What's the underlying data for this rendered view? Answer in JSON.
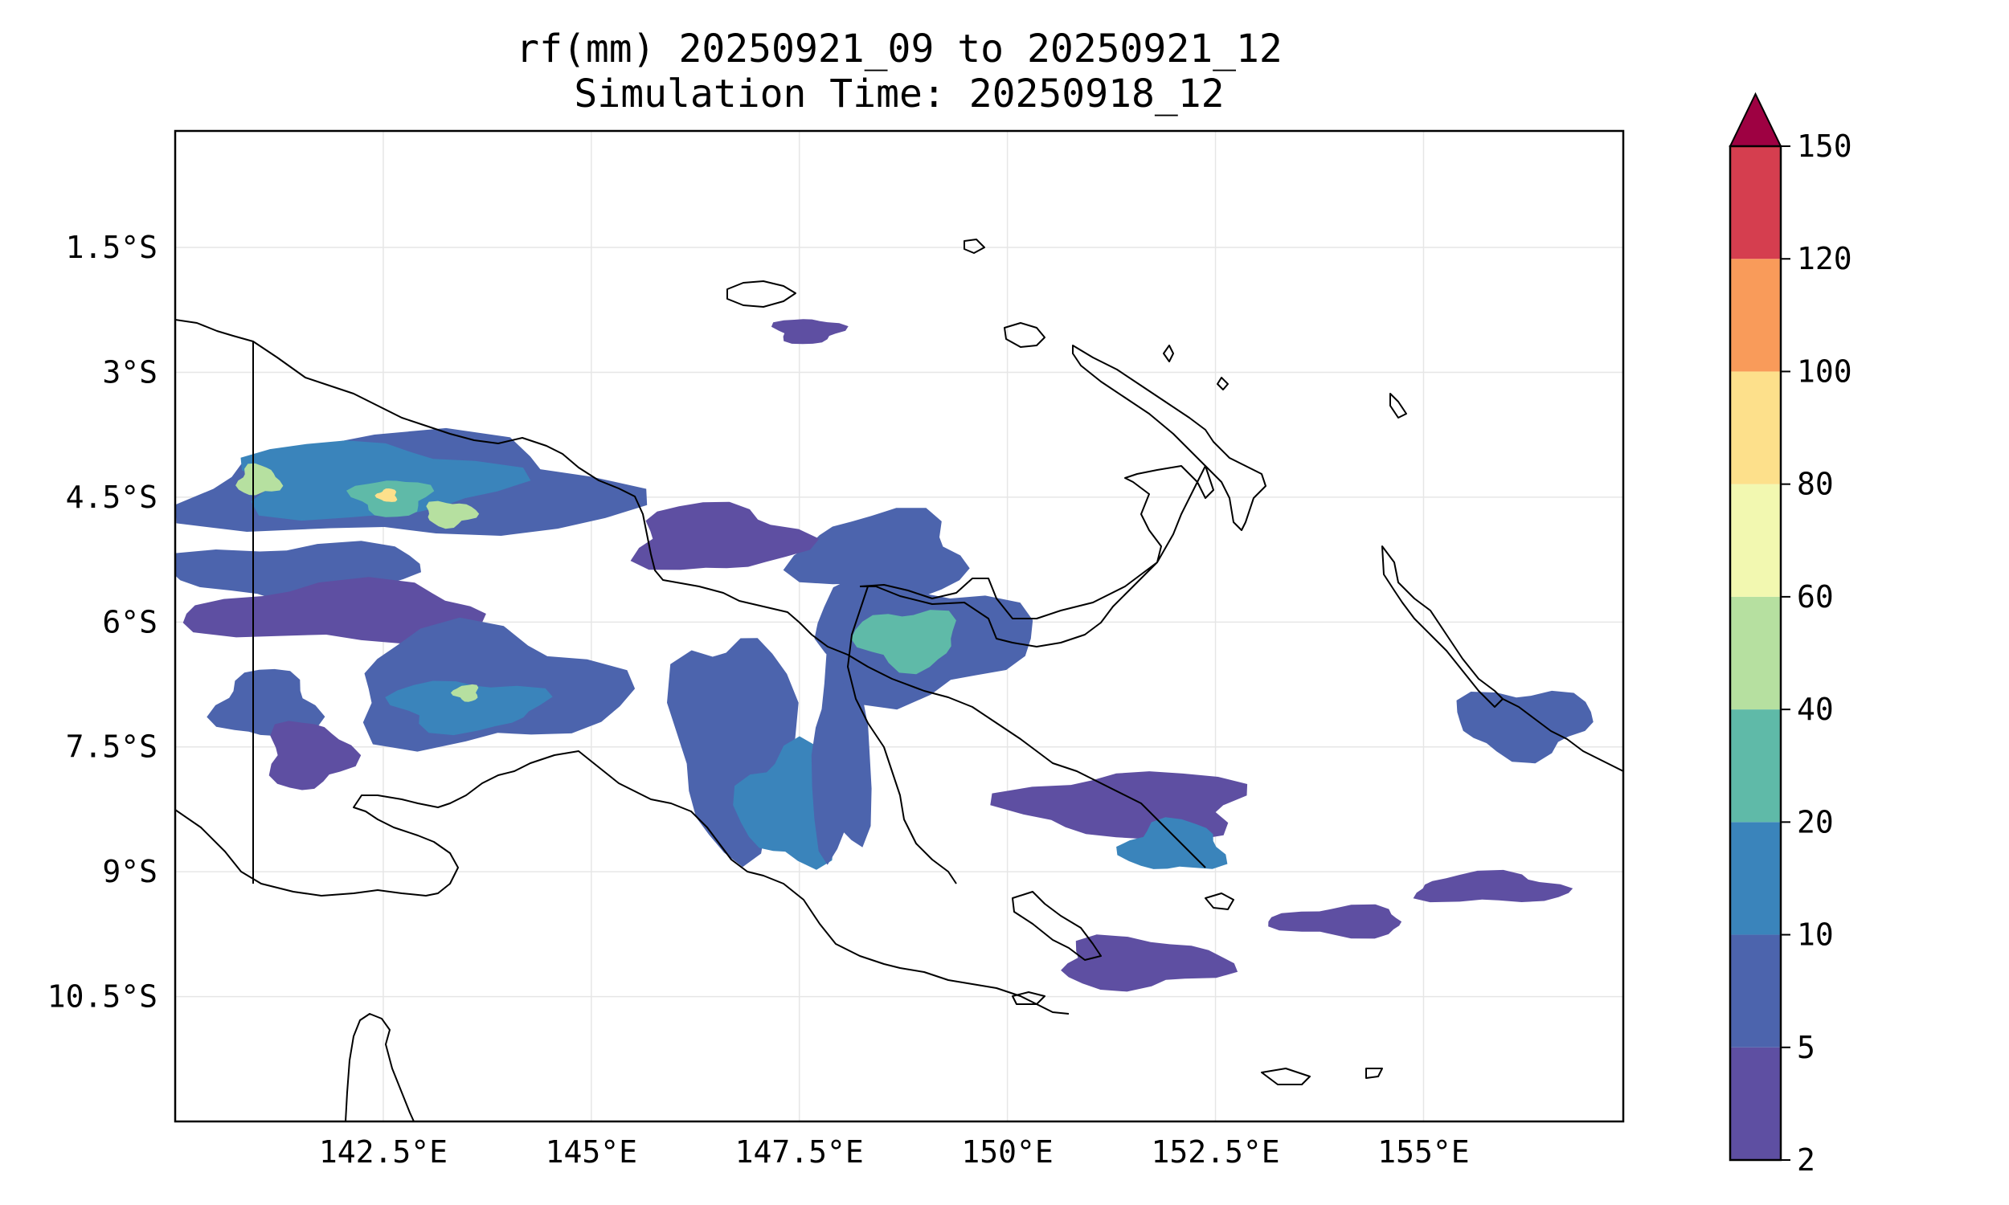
{
  "chart_data": {
    "type": "heatmap",
    "subtype": "filled-contour-map",
    "title": "rf(mm) 20250921_09 to 20250921_12",
    "subtitle": "Simulation Time: 20250918_12",
    "x_ticks": [
      "142.5°E",
      "145°E",
      "147.5°E",
      "150°E",
      "152.5°E",
      "155°E"
    ],
    "x_tick_values": [
      142.5,
      145,
      147.5,
      150,
      152.5,
      155
    ],
    "y_ticks": [
      "1.5°S",
      "3°S",
      "4.5°S",
      "6°S",
      "7.5°S",
      "9°S",
      "10.5°S"
    ],
    "y_tick_values": [
      -1.5,
      -3,
      -4.5,
      -6,
      -7.5,
      -9,
      -10.5
    ],
    "xlim": [
      140.0,
      157.4
    ],
    "ylim": [
      -12.0,
      -0.1
    ],
    "grid": true,
    "colorbar": {
      "location": "right",
      "extend": "max",
      "ticks": [
        "2",
        "5",
        "10",
        "20",
        "40",
        "60",
        "80",
        "100",
        "120",
        "150"
      ],
      "levels": [
        2,
        5,
        10,
        20,
        40,
        60,
        80,
        100,
        120,
        150
      ],
      "colors": [
        "#5e4fa2",
        "#4c64ad",
        "#3a84bb",
        "#5fbaa8",
        "#b6e0a0",
        "#f2f8b0",
        "#fde08b",
        "#f99b5a",
        "#d53e4f"
      ],
      "over_color": "#9e0142"
    },
    "rain_cells": [
      {
        "lon": 142.8,
        "lat": -4.4,
        "rx": 2.6,
        "ry": 0.6,
        "level": 2
      },
      {
        "lon": 142.3,
        "lat": -4.3,
        "rx": 1.6,
        "ry": 0.45,
        "level": 3
      },
      {
        "lon": 142.6,
        "lat": -4.5,
        "rx": 0.45,
        "ry": 0.22,
        "level": 4
      },
      {
        "lon": 142.55,
        "lat": -4.48,
        "rx": 0.12,
        "ry": 0.08,
        "level": 7
      },
      {
        "lon": 141.0,
        "lat": -4.3,
        "rx": 0.25,
        "ry": 0.18,
        "level": 5
      },
      {
        "lon": 143.3,
        "lat": -4.7,
        "rx": 0.3,
        "ry": 0.15,
        "level": 5
      },
      {
        "lon": 141.5,
        "lat": -5.4,
        "rx": 1.5,
        "ry": 0.35,
        "level": 2
      },
      {
        "lon": 142.0,
        "lat": -5.9,
        "rx": 1.8,
        "ry": 0.35,
        "level": 1
      },
      {
        "lon": 143.7,
        "lat": -6.8,
        "rx": 1.6,
        "ry": 0.7,
        "level": 2
      },
      {
        "lon": 143.5,
        "lat": -7.0,
        "rx": 0.9,
        "ry": 0.3,
        "level": 3
      },
      {
        "lon": 143.5,
        "lat": -6.85,
        "rx": 0.15,
        "ry": 0.1,
        "level": 5
      },
      {
        "lon": 141.1,
        "lat": -7.0,
        "rx": 0.6,
        "ry": 0.4,
        "level": 2
      },
      {
        "lon": 141.6,
        "lat": -7.6,
        "rx": 0.5,
        "ry": 0.4,
        "level": 1
      },
      {
        "lon": 146.7,
        "lat": -7.4,
        "rx": 0.7,
        "ry": 1.3,
        "level": 2
      },
      {
        "lon": 147.4,
        "lat": -8.2,
        "rx": 0.6,
        "ry": 0.7,
        "level": 3
      },
      {
        "lon": 148.0,
        "lat": -7.6,
        "rx": 0.35,
        "ry": 1.3,
        "level": 2
      },
      {
        "lon": 148.9,
        "lat": -6.2,
        "rx": 1.3,
        "ry": 0.7,
        "level": 2
      },
      {
        "lon": 148.8,
        "lat": -6.2,
        "rx": 0.6,
        "ry": 0.35,
        "level": 4
      },
      {
        "lon": 148.5,
        "lat": -5.2,
        "rx": 1.0,
        "ry": 0.5,
        "level": 2
      },
      {
        "lon": 146.5,
        "lat": -5.0,
        "rx": 1.0,
        "ry": 0.4,
        "level": 1
      },
      {
        "lon": 147.6,
        "lat": -2.5,
        "rx": 0.4,
        "ry": 0.15,
        "level": 1
      },
      {
        "lon": 151.5,
        "lat": -8.2,
        "rx": 1.4,
        "ry": 0.4,
        "level": 1
      },
      {
        "lon": 152.0,
        "lat": -8.7,
        "rx": 0.6,
        "ry": 0.3,
        "level": 3
      },
      {
        "lon": 151.6,
        "lat": -10.1,
        "rx": 1.0,
        "ry": 0.3,
        "level": 1
      },
      {
        "lon": 156.2,
        "lat": -7.2,
        "rx": 0.8,
        "ry": 0.4,
        "level": 2
      },
      {
        "lon": 154.0,
        "lat": -9.6,
        "rx": 0.8,
        "ry": 0.18,
        "level": 1
      },
      {
        "lon": 155.8,
        "lat": -9.2,
        "rx": 0.9,
        "ry": 0.18,
        "level": 1
      }
    ]
  }
}
